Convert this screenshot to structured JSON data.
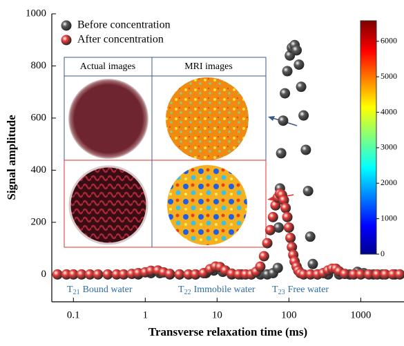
{
  "chart_data": {
    "type": "scatter",
    "x_label": "Transverse relaxation time (ms)",
    "y_label": "Signal amplitude",
    "log_x": true,
    "xlim": [
      0.05,
      4000
    ],
    "ylim": [
      -105,
      1000
    ],
    "xticks": [
      0.1,
      1,
      10,
      100,
      1000
    ],
    "yticks": [
      0,
      200,
      400,
      600,
      800,
      1000
    ],
    "legend": "top-left",
    "series": [
      {
        "name": "Before concentration",
        "color": "#5a5a5a",
        "x": [
          0.8,
          1.2,
          1.6,
          2.2,
          3,
          5,
          7,
          9,
          12,
          16,
          22,
          30,
          40,
          50,
          60,
          70,
          72,
          75,
          78,
          83,
          88,
          95,
          103,
          110,
          120,
          128,
          138,
          148,
          160,
          172,
          185,
          198,
          215,
          250,
          350,
          500,
          700,
          900,
          1100,
          1500,
          2000,
          3000
        ],
        "values": [
          0,
          5,
          5,
          0,
          0,
          0,
          5,
          15,
          10,
          0,
          0,
          0,
          0,
          0,
          5,
          25,
          180,
          330,
          465,
          590,
          695,
          780,
          840,
          870,
          880,
          860,
          805,
          720,
          610,
          478,
          320,
          145,
          40,
          0,
          0,
          0,
          0,
          10,
          5,
          0,
          0,
          0
        ]
      },
      {
        "name": "After concentration",
        "color": "#e8403c",
        "x": [
          0.06,
          0.08,
          0.1,
          0.13,
          0.17,
          0.22,
          0.3,
          0.4,
          0.5,
          0.65,
          0.8,
          1.0,
          1.2,
          1.5,
          1.8,
          2.2,
          3,
          4,
          5,
          6.5,
          8,
          9.5,
          11,
          13,
          16,
          20,
          25,
          30,
          35,
          40,
          45,
          50,
          55,
          60,
          65,
          70,
          75,
          80,
          85,
          90,
          95,
          100,
          105,
          110,
          115,
          120,
          128,
          135,
          145,
          160,
          200,
          250,
          300,
          350,
          400,
          450,
          500,
          600,
          800,
          1000,
          1300,
          1700,
          2200,
          2800,
          3500
        ],
        "values": [
          0,
          0,
          0,
          0,
          0,
          0,
          0,
          0,
          0,
          2,
          5,
          8,
          14,
          15,
          8,
          2,
          0,
          0,
          0,
          5,
          20,
          30,
          28,
          15,
          3,
          0,
          0,
          0,
          10,
          30,
          70,
          120,
          170,
          220,
          265,
          295,
          310,
          305,
          285,
          255,
          220,
          180,
          140,
          105,
          75,
          50,
          30,
          15,
          5,
          0,
          0,
          0,
          5,
          15,
          22,
          22,
          12,
          2,
          0,
          0,
          0,
          0,
          0,
          0,
          0
        ]
      }
    ],
    "inset": {
      "headers": [
        "Actual images",
        "MRI images"
      ]
    },
    "colorbar": {
      "clim": [
        0,
        6580
      ],
      "ticks": [
        0,
        1000,
        2000,
        3000,
        4000,
        5000,
        6000
      ]
    },
    "annotations": [
      {
        "symbol": "T",
        "subscript": "21",
        "label": "Bound water"
      },
      {
        "symbol": "T",
        "subscript": "22",
        "label": "Immobile water"
      },
      {
        "symbol": "T",
        "subscript": "23",
        "label": "Free water"
      }
    ]
  }
}
